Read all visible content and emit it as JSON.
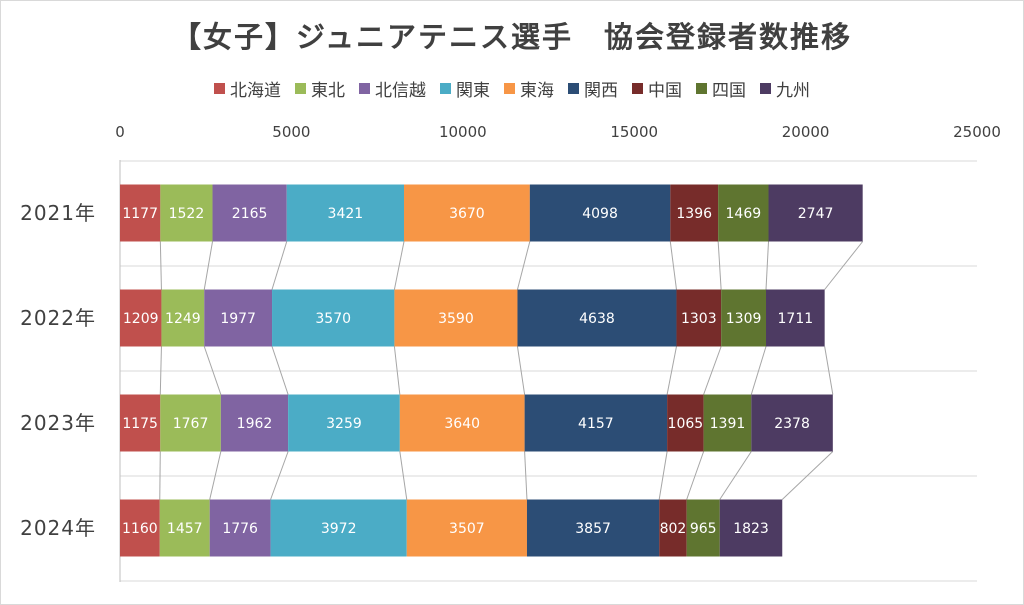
{
  "chart_data": {
    "type": "bar",
    "orientation": "horizontal",
    "stacked": true,
    "title": "【女子】ジュニアテニス選手　協会登録者数推移",
    "xlabel": "",
    "ylabel": "",
    "xlim": [
      0,
      25000
    ],
    "ticks": [
      "0",
      "5000",
      "10000",
      "15000",
      "20000",
      "25000"
    ],
    "tick_values": [
      0,
      5000,
      10000,
      15000,
      20000,
      25000
    ],
    "grid": true,
    "legend_position": "top",
    "categories": [
      "2021年",
      "2022年",
      "2023年",
      "2024年"
    ],
    "series": [
      {
        "name": "北海道",
        "color": "#C0504D",
        "values": [
          1177,
          1209,
          1175,
          1160
        ]
      },
      {
        "name": "東北",
        "color": "#9BBB59",
        "values": [
          1522,
          1249,
          1767,
          1457
        ]
      },
      {
        "name": "北信越",
        "color": "#8064A2",
        "values": [
          2165,
          1977,
          1962,
          1776
        ]
      },
      {
        "name": "関東",
        "color": "#4BACC6",
        "values": [
          3421,
          3570,
          3259,
          3972
        ]
      },
      {
        "name": "東海",
        "color": "#F79646",
        "values": [
          3670,
          3590,
          3640,
          3507
        ]
      },
      {
        "name": "関西",
        "color": "#2C4D75",
        "values": [
          4098,
          4638,
          4157,
          3857
        ]
      },
      {
        "name": "中国",
        "color": "#772C2A",
        "values": [
          1396,
          1303,
          1065,
          802
        ]
      },
      {
        "name": "四国",
        "color": "#5F7530",
        "values": [
          1469,
          1309,
          1391,
          965
        ]
      },
      {
        "name": "九州",
        "color": "#4D3B62",
        "values": [
          2747,
          1711,
          2378,
          1823
        ]
      }
    ]
  }
}
